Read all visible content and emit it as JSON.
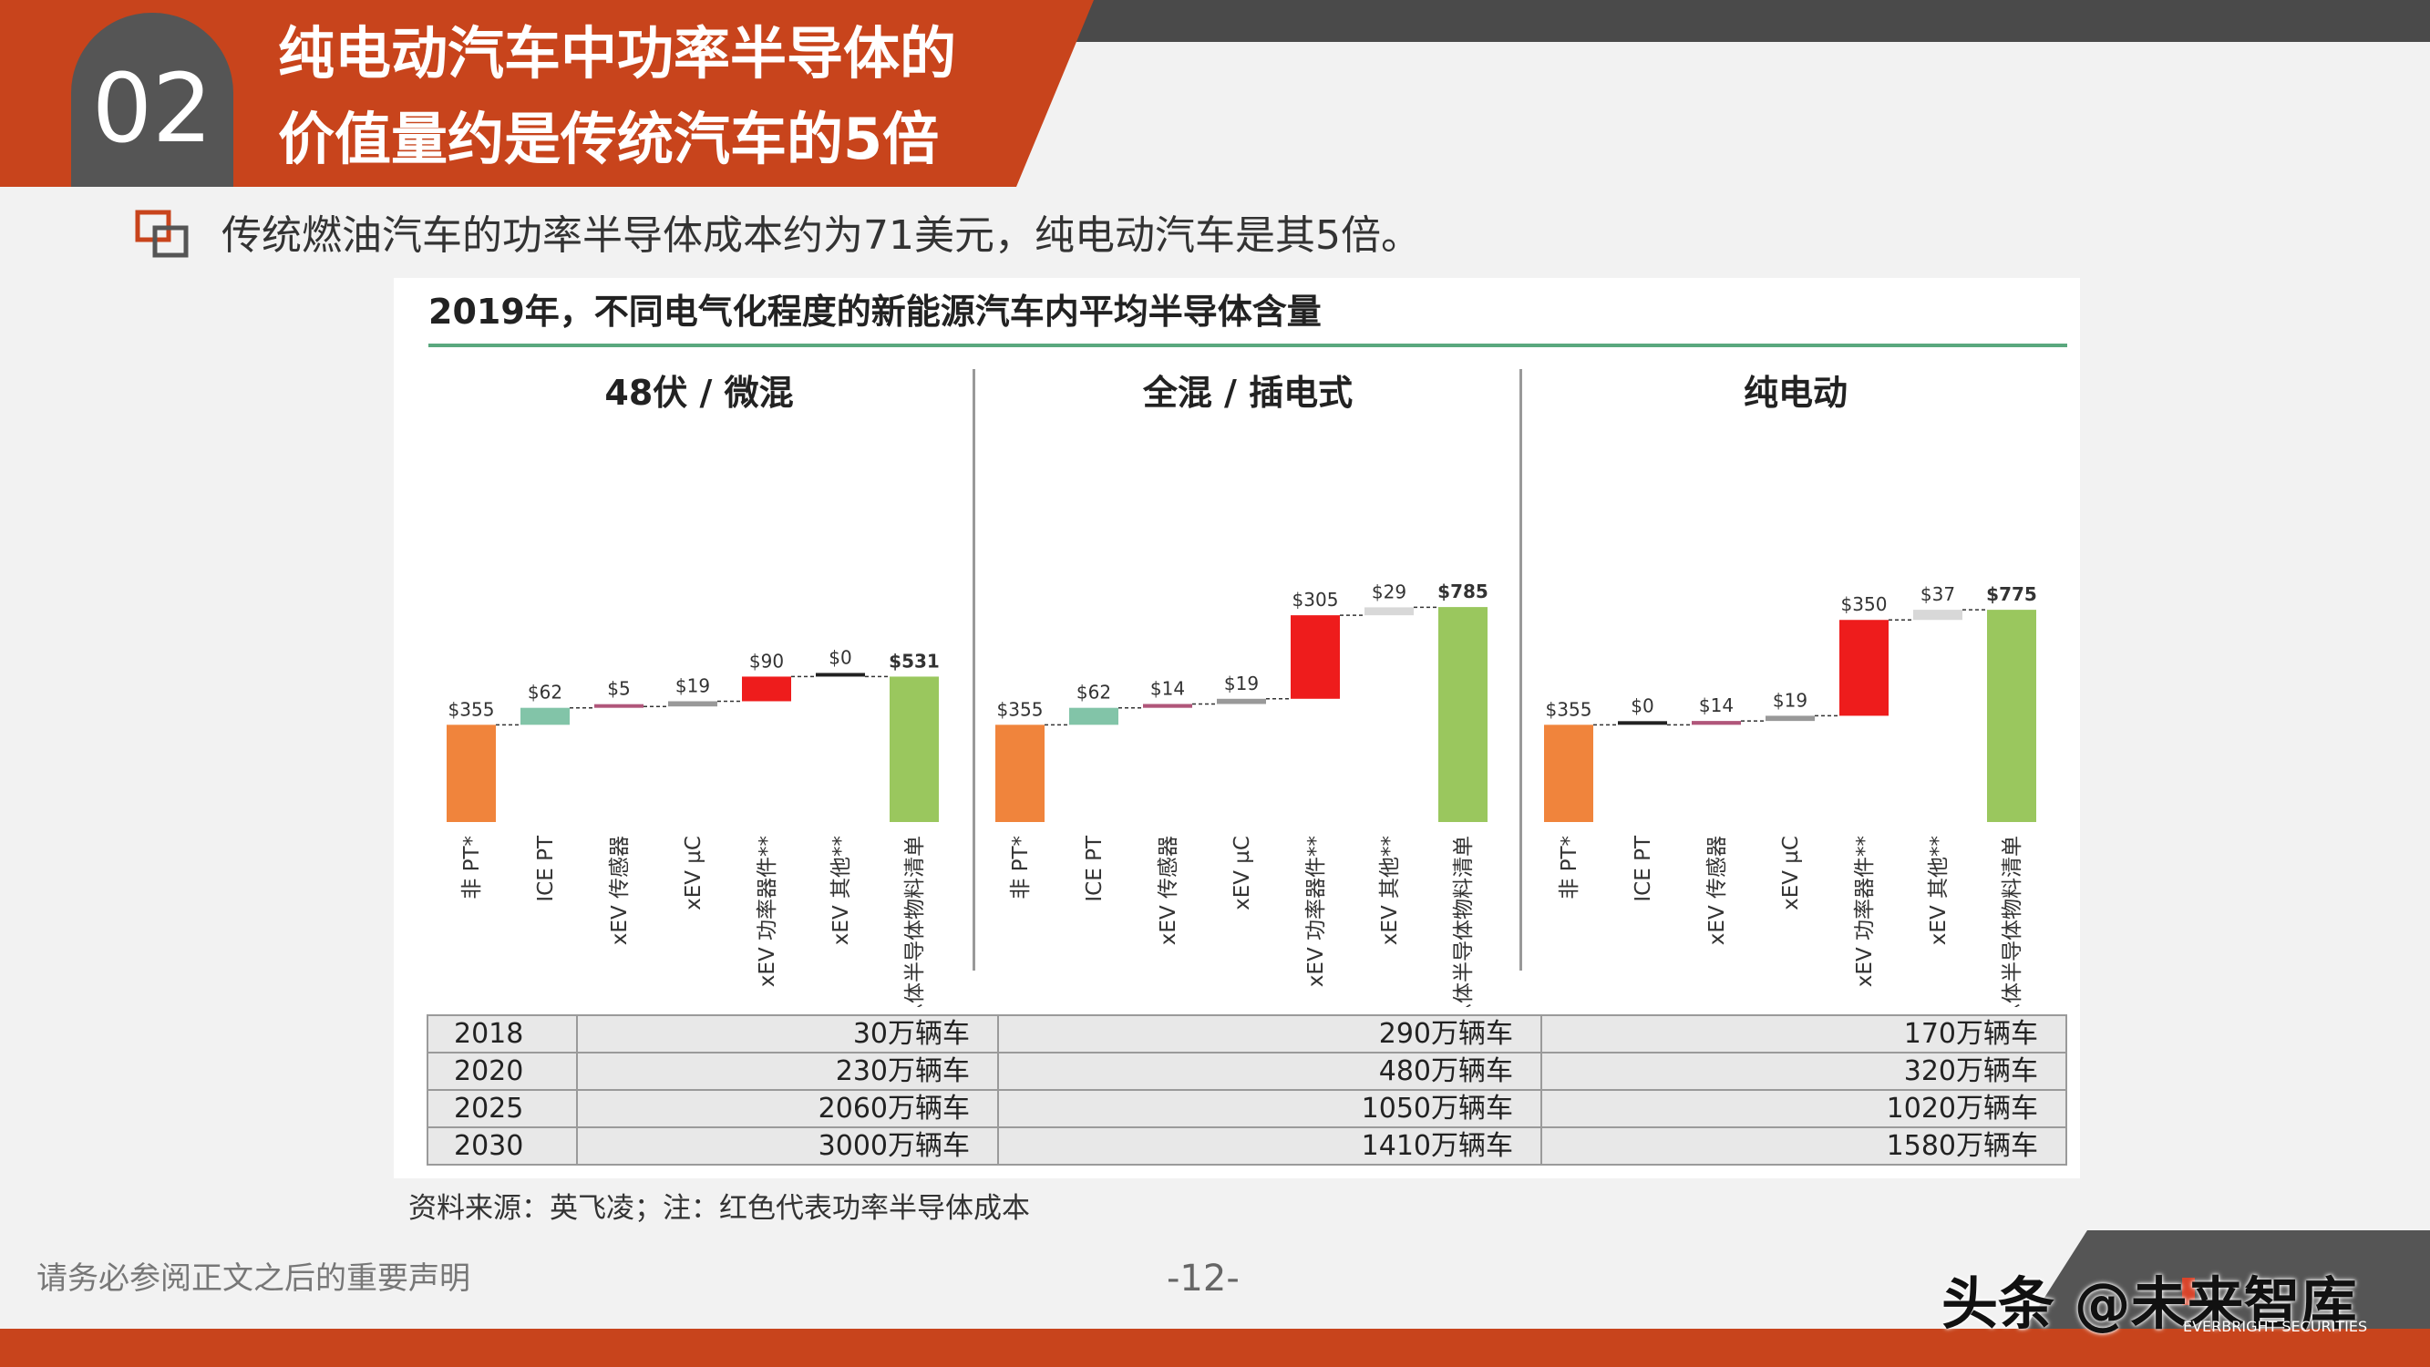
{
  "header": {
    "section_number": "02",
    "title_line1": "纯电动汽车中功率半导体的",
    "title_line2": "价值量约是传统汽车的5倍"
  },
  "bullet": {
    "text": "传统燃油汽车的功率半导体成本约为71美元，纯电动汽车是其5倍。"
  },
  "figure": {
    "title": "2019年，不同电气化程度的新能源汽车内平均半导体含量",
    "source": "资料来源：英飞凌；注：红色代表功率半导体成本"
  },
  "chart_data": [
    {
      "type": "bar",
      "title": "48伏 / 微混",
      "categories": [
        "非 PT*",
        "ICE PT",
        "xEV 传感器",
        "xEV µC",
        "xEV 功率器件**",
        "xEV 其他**",
        "总体半导体物料清单"
      ],
      "values": [
        355,
        62,
        5,
        19,
        90,
        0,
        531
      ],
      "labels": [
        "$355",
        "$62",
        "$5",
        "$19",
        "$90",
        "$0",
        "$531"
      ],
      "colors": [
        "#f0843c",
        "#82c4a8",
        "#b0567a",
        "#999999",
        "#ee1c1c",
        "#222222",
        "#9ac75e"
      ]
    },
    {
      "type": "bar",
      "title": "全混 / 插电式",
      "categories": [
        "非 PT*",
        "ICE PT",
        "xEV 传感器",
        "xEV µC",
        "xEV 功率器件**",
        "xEV 其他**",
        "总体半导体物料清单"
      ],
      "values": [
        355,
        62,
        14,
        19,
        305,
        29,
        785
      ],
      "labels": [
        "$355",
        "$62",
        "$14",
        "$19",
        "$305",
        "$29",
        "$785"
      ],
      "colors": [
        "#f0843c",
        "#82c4a8",
        "#b0567a",
        "#999999",
        "#ee1c1c",
        "#d8d8d8",
        "#9ac75e"
      ]
    },
    {
      "type": "bar",
      "title": "纯电动",
      "categories": [
        "非 PT*",
        "ICE PT",
        "xEV 传感器",
        "xEV µC",
        "xEV 功率器件**",
        "xEV 其他**",
        "总体半导体物料清单"
      ],
      "values": [
        355,
        0,
        14,
        19,
        350,
        37,
        775
      ],
      "labels": [
        "$355",
        "$0",
        "$14",
        "$19",
        "$350",
        "$37",
        "$775"
      ],
      "colors": [
        "#f0843c",
        "#222222",
        "#b0567a",
        "#999999",
        "#ee1c1c",
        "#d8d8d8",
        "#9ac75e"
      ]
    }
  ],
  "volume_table": {
    "rows": [
      {
        "year": "2018",
        "c1": "30万辆车",
        "c2": "290万辆车",
        "c3": "170万辆车"
      },
      {
        "year": "2020",
        "c1": "230万辆车",
        "c2": "480万辆车",
        "c3": "320万辆车"
      },
      {
        "year": "2025",
        "c1": "2060万辆车",
        "c2": "1050万辆车",
        "c3": "1020万辆车"
      },
      {
        "year": "2030",
        "c1": "3000万辆车",
        "c2": "1410万辆车",
        "c3": "1580万辆车"
      }
    ]
  },
  "footer": {
    "disclaimer": "请务必参阅正文之后的重要声明",
    "page": "-12-",
    "watermark": "头条 @未来智库",
    "brand_sub": "EVERBRIGHT SECURITIES"
  },
  "colors": {
    "accent": "#c8441c",
    "dark": "#4a4a4a"
  }
}
